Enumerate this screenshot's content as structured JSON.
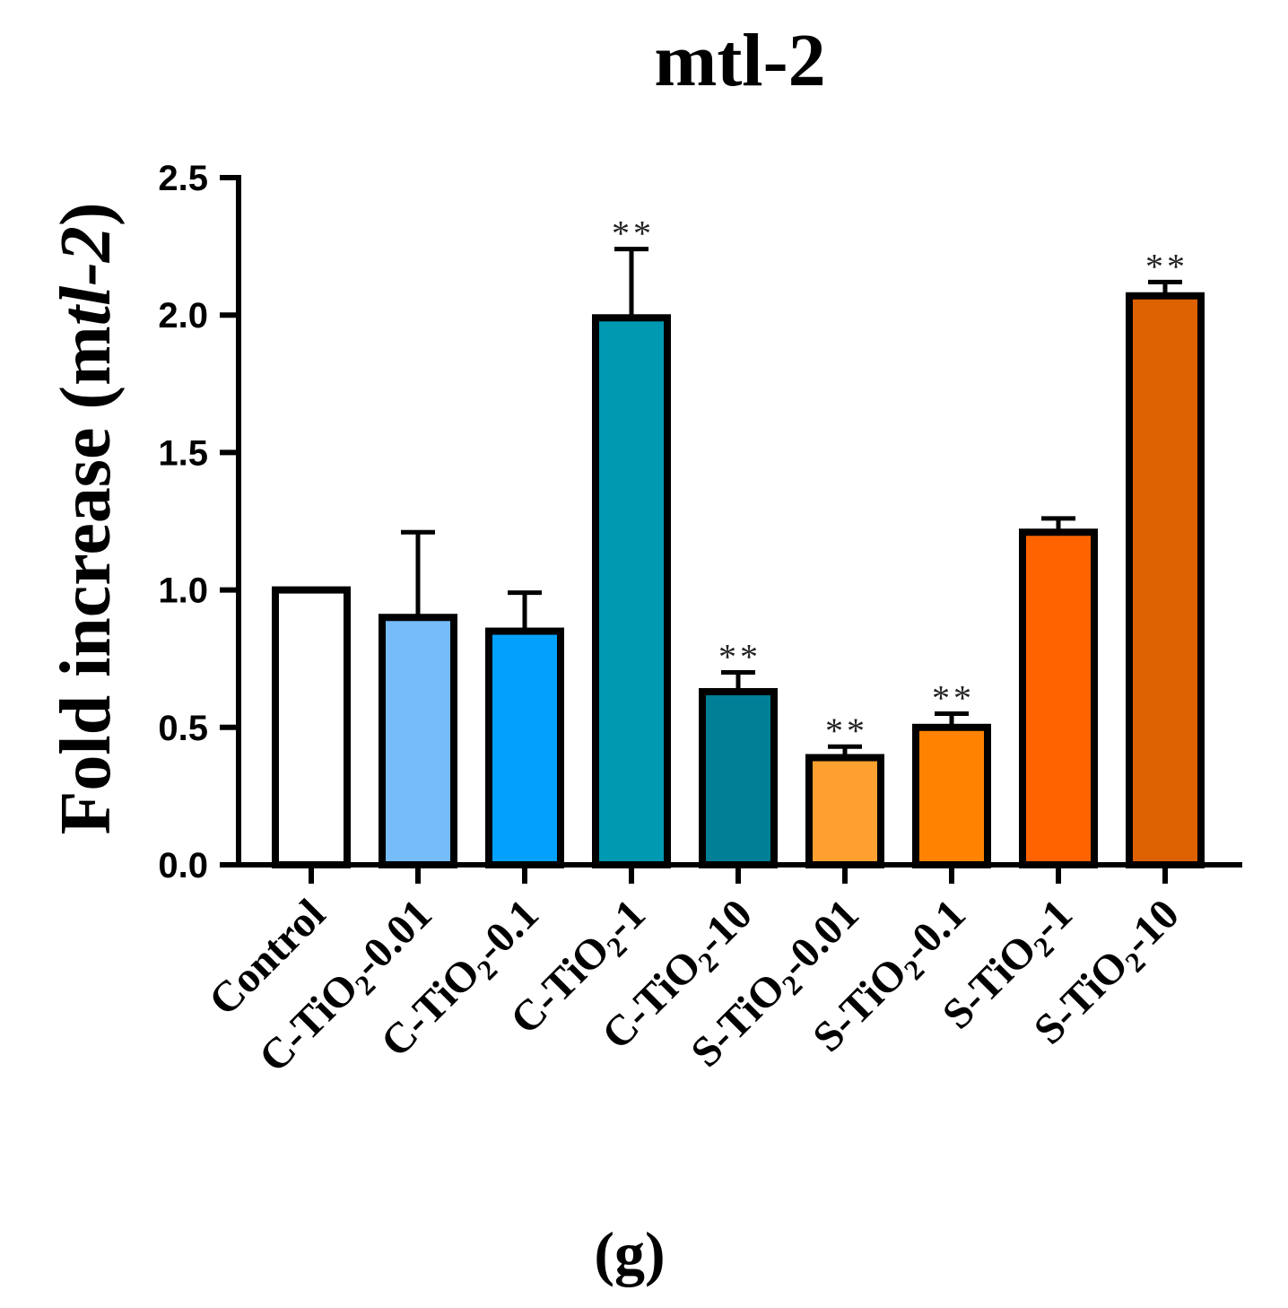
{
  "chart_data": {
    "type": "bar",
    "title": "mtl-2",
    "ylabel": {
      "prefix": "Fold increase (m",
      "italic": "tl-2",
      "suffix": ")"
    },
    "xlabel": "",
    "ylim": [
      0,
      2.5
    ],
    "yticks": [
      "0.0",
      "0.5",
      "1.0",
      "1.5",
      "2.0",
      "2.5"
    ],
    "categories": [
      {
        "prefix": "Control",
        "sub": "",
        "suffix": ""
      },
      {
        "prefix": "C-TiO",
        "sub": "2",
        "suffix": "-0.01"
      },
      {
        "prefix": "C-TiO",
        "sub": "2",
        "suffix": "-0.1"
      },
      {
        "prefix": "C-TiO",
        "sub": "2",
        "suffix": "-1"
      },
      {
        "prefix": "C-TiO",
        "sub": "2",
        "suffix": "-10"
      },
      {
        "prefix": "S-TiO",
        "sub": "2",
        "suffix": "-0.01"
      },
      {
        "prefix": "S-TiO",
        "sub": "2",
        "suffix": "-0.1"
      },
      {
        "prefix": "S-TiO",
        "sub": "2",
        "suffix": "-1"
      },
      {
        "prefix": "S-TiO",
        "sub": "2",
        "suffix": "-10"
      }
    ],
    "values": [
      1.0,
      0.9,
      0.85,
      1.99,
      0.63,
      0.39,
      0.5,
      1.21,
      2.07
    ],
    "errors": [
      0.0,
      0.31,
      0.14,
      0.25,
      0.07,
      0.04,
      0.05,
      0.05,
      0.05
    ],
    "colors": [
      "#ffffff",
      "#75bcf8",
      "#03a1fc",
      "#0099b2",
      "#007f96",
      "#ffa030",
      "#ff8300",
      "#ff6300",
      "#dd6100"
    ],
    "significance": [
      "",
      "",
      "",
      "**",
      "**",
      "**",
      "**",
      "",
      "**"
    ],
    "panel_label": "(g)"
  }
}
